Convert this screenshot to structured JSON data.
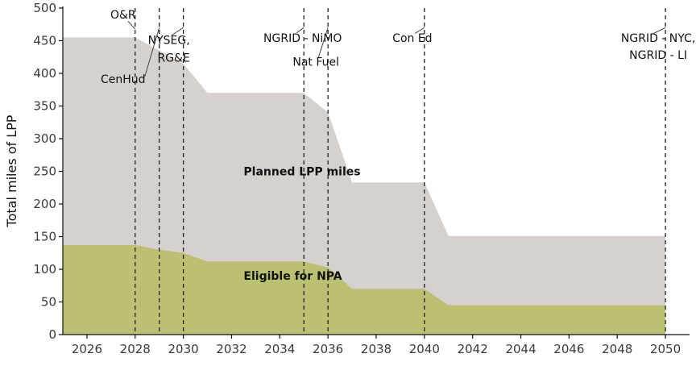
{
  "chart_data": {
    "type": "area",
    "title": "",
    "xlabel": "",
    "ylabel": "Total miles of LPP",
    "xlim": [
      2025,
      2051
    ],
    "ylim": [
      0,
      500
    ],
    "x_ticks": [
      2026,
      2028,
      2030,
      2032,
      2034,
      2036,
      2038,
      2040,
      2042,
      2044,
      2046,
      2048,
      2050
    ],
    "y_ticks": [
      0,
      50,
      100,
      150,
      200,
      250,
      300,
      350,
      400,
      450,
      500
    ],
    "colors": {
      "planned": "#d6d1cf",
      "eligible": "#bcc073",
      "axis": "#111111",
      "vline": "#222222"
    },
    "series": [
      {
        "name": "Planned LPP miles",
        "x": [
          2025,
          2026,
          2027,
          2028,
          2029,
          2030,
          2031,
          2032,
          2033,
          2034,
          2035,
          2036,
          2037,
          2038,
          2039,
          2040,
          2041,
          2042,
          2043,
          2044,
          2045,
          2046,
          2047,
          2048,
          2049,
          2050
        ],
        "values": [
          455,
          455,
          455,
          455,
          435,
          415,
          370,
          370,
          370,
          370,
          370,
          340,
          233,
          233,
          233,
          233,
          151,
          151,
          151,
          151,
          151,
          151,
          151,
          151,
          151,
          151
        ]
      },
      {
        "name": "Eligible for NPA",
        "x": [
          2025,
          2026,
          2027,
          2028,
          2029,
          2030,
          2031,
          2032,
          2033,
          2034,
          2035,
          2036,
          2037,
          2038,
          2039,
          2040,
          2041,
          2042,
          2043,
          2044,
          2045,
          2046,
          2047,
          2048,
          2049,
          2050
        ],
        "values": [
          137,
          137,
          137,
          137,
          130,
          125,
          112,
          112,
          112,
          112,
          112,
          103,
          70,
          70,
          70,
          70,
          45,
          45,
          45,
          45,
          45,
          45,
          45,
          45,
          45,
          45
        ]
      }
    ],
    "area_labels": [
      {
        "text": "Planned LPP miles",
        "x": 2032.5,
        "y": 250
      },
      {
        "text": "Eligible for NPA",
        "x": 2032.5,
        "y": 90
      }
    ],
    "vlines": [
      {
        "x": 2028,
        "labels": [
          "O&R"
        ],
        "label_x": 2027.5,
        "label_y": 484,
        "leader_y1": 470
      },
      {
        "x": 2028,
        "labels": [
          "CenHud"
        ],
        "label_x": 2027.5,
        "label_y": 385,
        "leader_y1": 470
      },
      {
        "x": 2029,
        "labels": [
          "NYSEG,"
        ],
        "label_x": 2029.4,
        "label_y": 445,
        "leader_y1": 470
      },
      {
        "x": 2030,
        "labels": [
          "RG&E"
        ],
        "label_x": 2029.6,
        "label_y": 418,
        "leader_y1": 470
      },
      {
        "x": 2035,
        "labels": [
          "NGRID - NiMO"
        ],
        "label_x": 2034.95,
        "label_y": 448,
        "leader_y1": 470
      },
      {
        "x": 2036,
        "labels": [
          "Nat Fuel"
        ],
        "label_x": 2035.5,
        "label_y": 412,
        "leader_y1": 470
      },
      {
        "x": 2040,
        "labels": [
          "Con Ed"
        ],
        "label_x": 2039.5,
        "label_y": 448,
        "leader_y1": 470
      },
      {
        "x": 2050,
        "labels": [
          "NGRID - NYC,",
          "NGRID - LI"
        ],
        "label_x": 2049.7,
        "label_y": 448,
        "leader_y1": 470
      }
    ]
  }
}
